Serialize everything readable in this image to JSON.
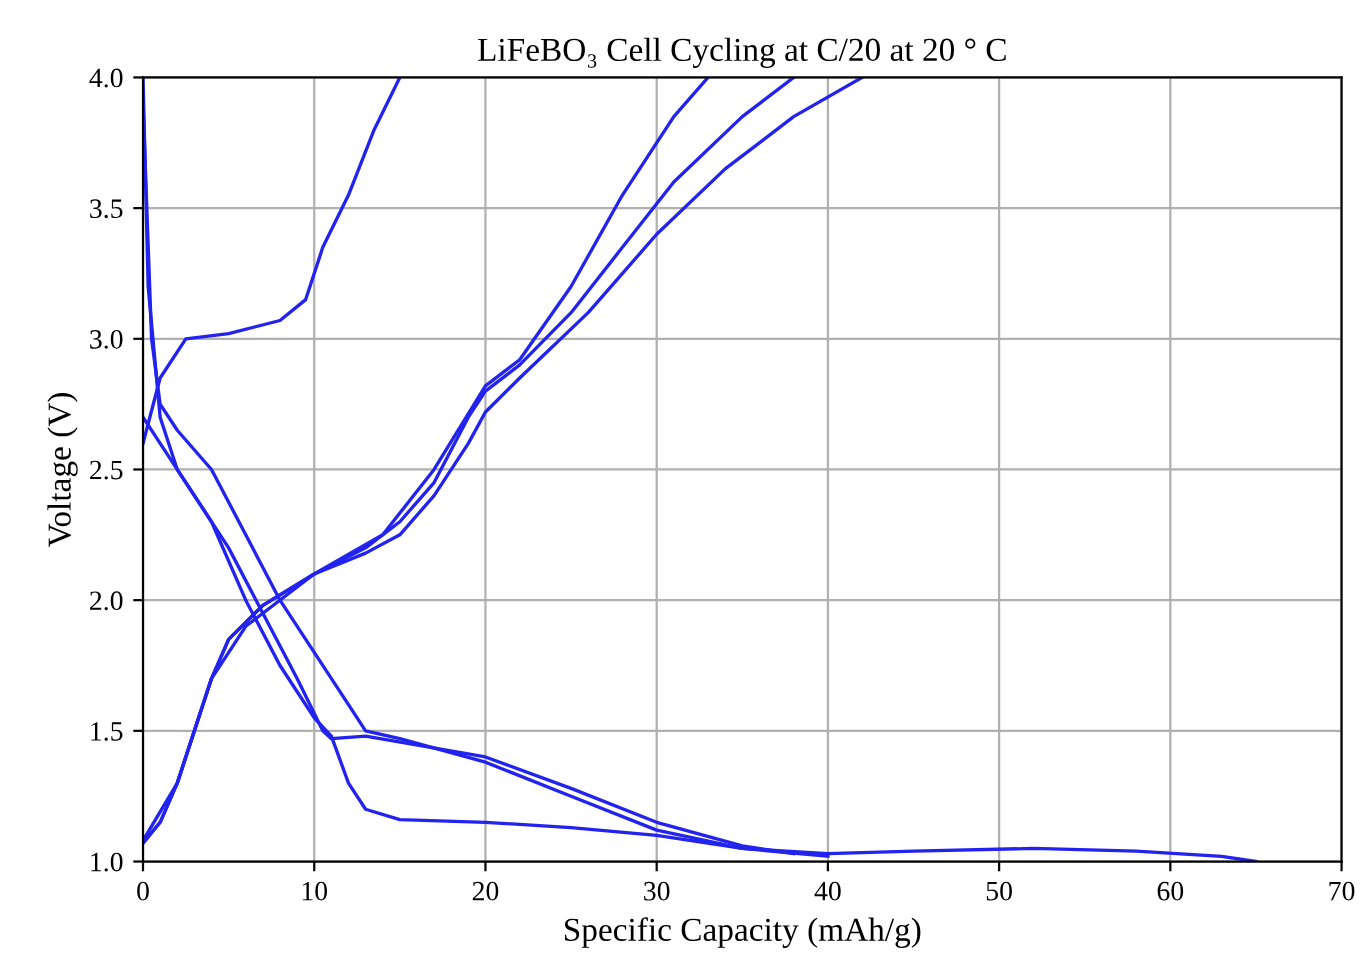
{
  "chart_data": {
    "type": "line",
    "title": "LiFeBO₃ Cell Cycling at C/20 at 20 ° C",
    "xlabel": "Specific Capacity (mAh/g)",
    "ylabel": "Voltage (V)",
    "xlim": [
      0,
      70
    ],
    "xticks": [
      0,
      10,
      20,
      30,
      40,
      50,
      60,
      70
    ],
    "ylim": [
      1.0,
      4.0
    ],
    "yticks": [
      {
        "value": 1.0,
        "label": "1.0"
      },
      1.5,
      {
        "value": 2.0,
        "label": "2.0"
      },
      2.5,
      {
        "value": 3.0,
        "label": "3.0"
      },
      3.5,
      {
        "value": 4.0,
        "label": "4.0"
      }
    ],
    "grid": true,
    "marker": "none",
    "line_style": "solid",
    "series": [
      {
        "color": "#2323f0",
        "x": [
          0,
          1,
          2.5,
          5,
          8,
          9.5,
          10.5,
          12,
          13.5,
          15
        ],
        "values": [
          2.6,
          2.85,
          3.0,
          3.02,
          3.07,
          3.15,
          3.35,
          3.55,
          3.8,
          4.0
        ]
      },
      {
        "color": "#2323f0",
        "x": [
          0,
          0.3,
          1,
          2,
          4,
          6,
          8,
          10,
          11,
          12,
          13,
          15,
          20,
          25,
          30,
          35,
          40,
          45,
          52,
          58,
          63,
          65
        ],
        "values": [
          4.0,
          3.2,
          2.7,
          2.5,
          2.3,
          2.0,
          1.75,
          1.55,
          1.48,
          1.3,
          1.2,
          1.16,
          1.15,
          1.13,
          1.1,
          1.05,
          1.03,
          1.04,
          1.05,
          1.04,
          1.02,
          1.0
        ]
      },
      {
        "color": "#2323f0",
        "x": [
          0,
          0.5,
          1,
          2,
          4,
          6,
          8,
          10,
          12,
          13,
          15,
          20,
          25,
          30,
          35,
          40
        ],
        "values": [
          3.9,
          3.0,
          2.75,
          2.65,
          2.5,
          2.25,
          2.0,
          1.8,
          1.6,
          1.5,
          1.47,
          1.38,
          1.25,
          1.12,
          1.05,
          1.02
        ]
      },
      {
        "color": "#2323f0",
        "x": [
          0,
          1,
          3,
          5,
          7,
          9,
          10.5,
          11,
          13,
          20,
          25,
          30,
          35,
          38
        ],
        "values": [
          2.7,
          2.6,
          2.4,
          2.2,
          1.95,
          1.7,
          1.5,
          1.47,
          1.48,
          1.4,
          1.28,
          1.15,
          1.06,
          1.03
        ]
      },
      {
        "color": "#2323f0",
        "x": [
          0,
          1,
          2,
          3,
          4,
          5,
          7,
          10,
          13,
          15,
          17,
          19,
          20,
          22,
          25,
          28,
          31,
          35,
          38
        ],
        "values": [
          1.07,
          1.15,
          1.3,
          1.5,
          1.7,
          1.85,
          1.98,
          2.1,
          2.2,
          2.3,
          2.45,
          2.7,
          2.8,
          2.9,
          3.1,
          3.35,
          3.6,
          3.85,
          4.0
        ]
      },
      {
        "color": "#2323f0",
        "x": [
          0,
          1,
          2,
          3,
          4,
          5,
          7,
          10,
          13,
          15,
          17,
          19,
          20,
          22,
          26,
          30,
          34,
          38,
          42
        ],
        "values": [
          1.07,
          1.15,
          1.3,
          1.5,
          1.7,
          1.85,
          1.98,
          2.1,
          2.18,
          2.25,
          2.4,
          2.6,
          2.72,
          2.85,
          3.1,
          3.4,
          3.65,
          3.85,
          4.0
        ]
      },
      {
        "color": "#2323f0",
        "x": [
          0,
          2,
          4,
          6,
          10,
          14,
          17,
          20,
          22,
          25,
          28,
          31,
          33
        ],
        "values": [
          1.08,
          1.3,
          1.7,
          1.9,
          2.1,
          2.25,
          2.5,
          2.82,
          2.92,
          3.2,
          3.55,
          3.85,
          4.0
        ]
      }
    ]
  }
}
